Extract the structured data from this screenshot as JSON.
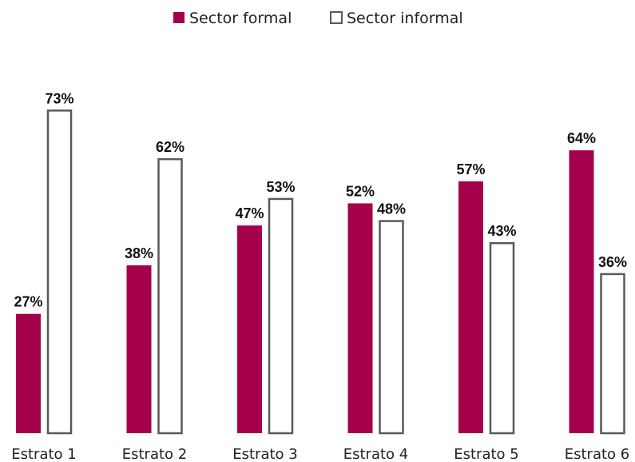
{
  "chart_data": {
    "type": "bar",
    "categories": [
      "Estrato 1",
      "Estrato 2",
      "Estrato 3",
      "Estrato 4",
      "Estrato 5",
      "Estrato 6"
    ],
    "series": [
      {
        "name": "Sector formal",
        "values": [
          27,
          38,
          47,
          52,
          57,
          64
        ],
        "labels": [
          "27%",
          "38%",
          "47%",
          "52%",
          "57%",
          "64%"
        ],
        "color": "#A5004B",
        "style": "filled"
      },
      {
        "name": "Sector informal",
        "values": [
          73,
          62,
          53,
          48,
          43,
          36
        ],
        "labels": [
          "73%",
          "62%",
          "53%",
          "48%",
          "43%",
          "36%"
        ],
        "color": "#FFFFFF",
        "stroke": "#595959",
        "style": "outline"
      }
    ],
    "ylim": [
      0,
      100
    ],
    "grid": false,
    "legend_position": "top-center",
    "value_unit": "%"
  }
}
